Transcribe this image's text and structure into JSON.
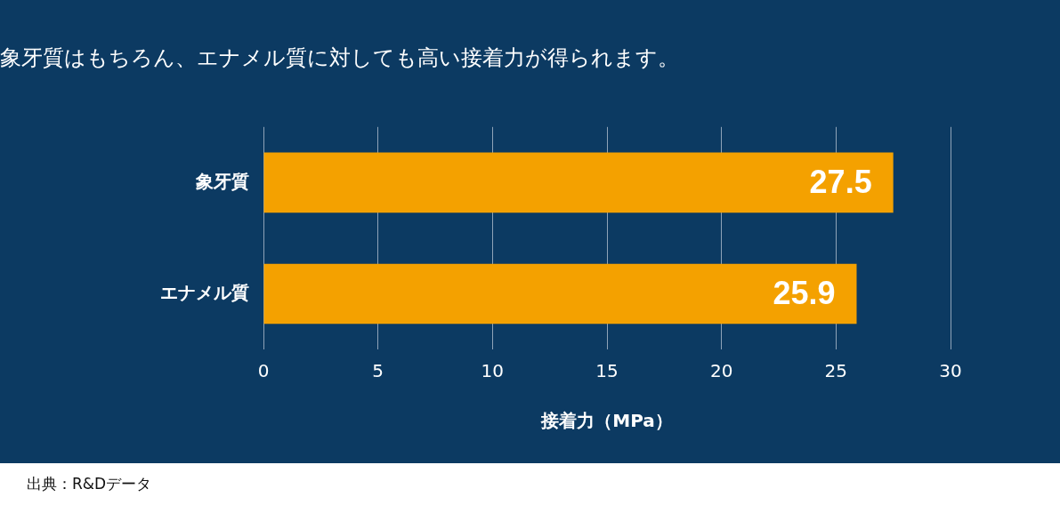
{
  "chart_data": {
    "type": "bar",
    "orientation": "horizontal",
    "title": "象牙質はもちろん、エナメル質に対しても高い接着力が得られます。",
    "categories": [
      "象牙質",
      "エナメル質"
    ],
    "values": [
      27.5,
      25.9
    ],
    "color": "#f4a100",
    "xlabel": "接着力（MPa）",
    "xlim": [
      0,
      30
    ],
    "xticks": [
      0,
      5,
      10,
      15,
      20,
      25,
      30
    ],
    "grid": "x",
    "data_labels": true,
    "legend": false,
    "annotations": [
      "出典：R&Dデータ"
    ]
  }
}
